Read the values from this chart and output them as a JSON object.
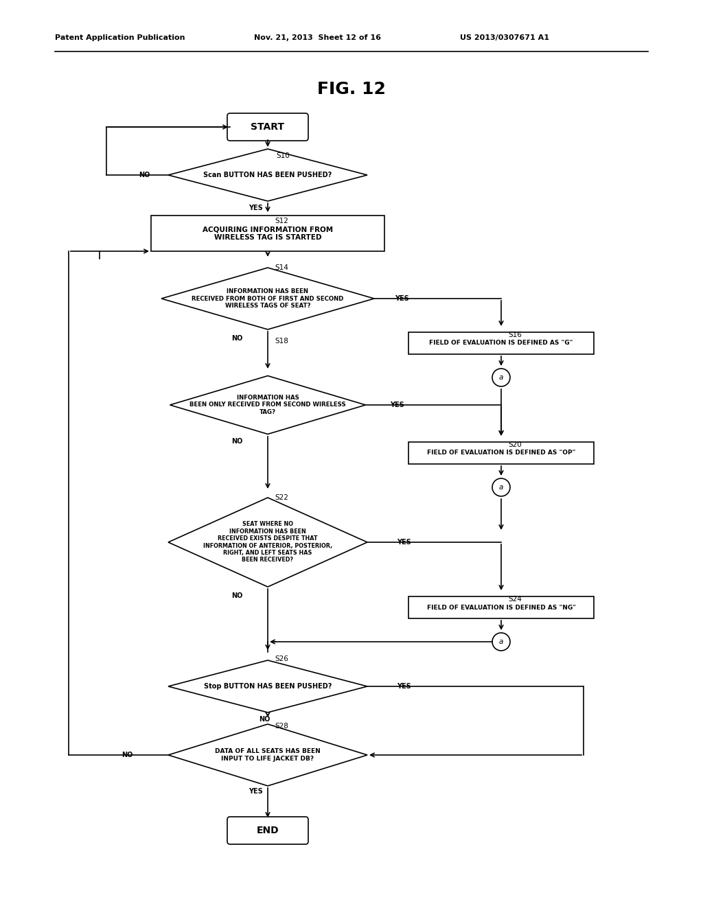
{
  "title": "FIG. 12",
  "header_left": "Patent Application Publication",
  "header_mid": "Nov. 21, 2013  Sheet 12 of 16",
  "header_right": "US 2013/0307671 A1",
  "bg_color": "#ffffff"
}
